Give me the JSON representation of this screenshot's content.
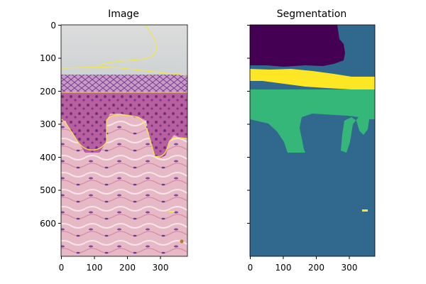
{
  "figure": {
    "panels": [
      {
        "title": "Image",
        "x_ticks": [
          "0",
          "100",
          "200",
          "300"
        ],
        "y_ticks": [
          "0",
          "100",
          "200",
          "300",
          "400",
          "500",
          "600"
        ],
        "content": "H&E stained skin tissue micrograph with yellow contour overlay"
      },
      {
        "title": "Segmentation",
        "x_ticks": [
          "0",
          "100",
          "200",
          "300"
        ],
        "content": "Segmentation label map",
        "label_colors": [
          "#440154",
          "#31688e",
          "#35b779",
          "#fde725"
        ]
      }
    ]
  }
}
